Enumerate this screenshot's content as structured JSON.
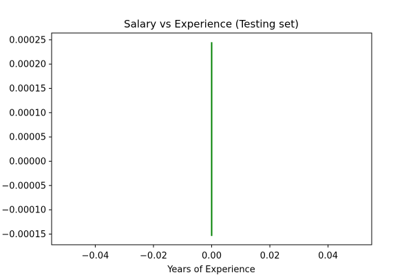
{
  "chart_data": {
    "type": "line",
    "title": "Salary vs Experience (Testing set)",
    "xlabel": "Years of Experience",
    "ylabel": "",
    "xlim": [
      -0.055,
      0.055
    ],
    "ylim": [
      -0.000172,
      0.000264
    ],
    "xticks": [
      -0.04,
      -0.02,
      0.0,
      0.02,
      0.04
    ],
    "xtick_labels": [
      "−0.04",
      "−0.02",
      "0.00",
      "0.02",
      "0.04"
    ],
    "yticks": [
      -0.00015,
      -0.0001,
      -5e-05,
      0.0,
      5e-05,
      0.0001,
      0.00015,
      0.0002,
      0.00025
    ],
    "ytick_labels": [
      "−0.00015",
      "−0.00010",
      "−0.00005",
      "0.00000",
      "0.00005",
      "0.00010",
      "0.00015",
      "0.00020",
      "0.00025"
    ],
    "grid": false,
    "series": [
      {
        "color": "#008000",
        "x": [
          0.0,
          0.0
        ],
        "y": [
          -0.000154,
          0.000245
        ]
      }
    ]
  }
}
